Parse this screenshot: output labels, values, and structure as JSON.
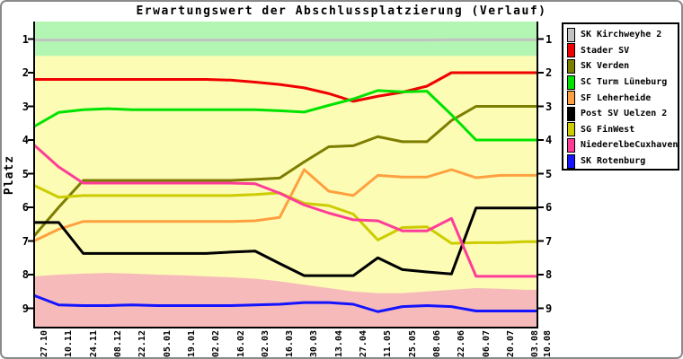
{
  "chart": {
    "frame_color": "#8a8a8a",
    "background_color": "#ffffff",
    "axis_color": "#000000"
  },
  "chart_data": {
    "type": "line",
    "title": "Erwartungswert der Abschlussplatzierung (Verlauf)",
    "xlabel": "",
    "ylabel": "Platz",
    "y_axis_inverted": true,
    "ylim": [
      0.48,
      9.6
    ],
    "y_ticks": [
      "1",
      "2",
      "3",
      "4",
      "5",
      "6",
      "7",
      "8",
      "9"
    ],
    "legend_position": "right",
    "grid": false,
    "x_tick_labels": [
      "27.10",
      "10.11",
      "24.11",
      "08.12",
      "22.12",
      "05.01",
      "19.01",
      "02.02",
      "16.02",
      "02.03",
      "16.03",
      "30.03",
      "13.04",
      "27.04",
      "11.05",
      "25.05",
      "08.06",
      "22.06",
      "06.07",
      "20.07",
      "03.08",
      "10.08"
    ],
    "x_units": [
      0,
      1,
      2,
      3,
      4,
      5,
      6,
      7,
      8,
      9,
      10,
      11,
      12,
      13,
      14,
      15,
      16,
      17,
      18,
      19,
      20,
      20.5
    ],
    "series": [
      {
        "name": "SK Kirchweyhe 2",
        "color": "#c2c2c2",
        "values": [
          1.03,
          1.03,
          1.03,
          1.03,
          1.03,
          1.03,
          1.03,
          1.03,
          1.03,
          1.03,
          1.03,
          1.03,
          1.03,
          1.03,
          1.03,
          1.03,
          1.03,
          1.02,
          1.02,
          1.02,
          1.02,
          1.02
        ]
      },
      {
        "name": "Stader SV",
        "color": "#f00000",
        "values": [
          2.2,
          2.2,
          2.2,
          2.2,
          2.2,
          2.2,
          2.2,
          2.2,
          2.22,
          2.28,
          2.35,
          2.45,
          2.62,
          2.85,
          2.7,
          2.58,
          2.4,
          2.0,
          2.0,
          2.0,
          2.0,
          2.0
        ]
      },
      {
        "name": "SK Verden",
        "color": "#7d7d00",
        "values": [
          6.85,
          6.0,
          5.2,
          5.2,
          5.2,
          5.2,
          5.2,
          5.2,
          5.2,
          5.17,
          5.13,
          4.65,
          4.2,
          4.17,
          3.9,
          4.05,
          4.05,
          3.42,
          3.0,
          3.0,
          3.0,
          3.0
        ]
      },
      {
        "name": "SC Turm Lüneburg",
        "color": "#00e300",
        "values": [
          3.6,
          3.18,
          3.1,
          3.07,
          3.1,
          3.1,
          3.1,
          3.1,
          3.1,
          3.1,
          3.13,
          3.17,
          2.97,
          2.78,
          2.53,
          2.57,
          2.55,
          3.25,
          4.0,
          4.0,
          4.0,
          4.0
        ]
      },
      {
        "name": "SF Leherheide",
        "color": "#ffa040",
        "values": [
          7.0,
          6.65,
          6.42,
          6.42,
          6.42,
          6.42,
          6.42,
          6.42,
          6.42,
          6.4,
          6.3,
          4.88,
          5.52,
          5.65,
          5.05,
          5.1,
          5.1,
          4.88,
          5.12,
          5.05,
          5.05,
          5.05
        ]
      },
      {
        "name": "Post SV Uelzen 2",
        "color": "#000000",
        "values": [
          6.45,
          6.45,
          7.37,
          7.37,
          7.37,
          7.37,
          7.37,
          7.37,
          7.33,
          7.3,
          7.67,
          8.03,
          8.03,
          8.03,
          7.5,
          7.85,
          7.92,
          7.98,
          6.02,
          6.02,
          6.02,
          6.02
        ]
      },
      {
        "name": "SG FinWest",
        "color": "#cccc00",
        "values": [
          5.35,
          5.7,
          5.65,
          5.65,
          5.65,
          5.65,
          5.65,
          5.65,
          5.65,
          5.62,
          5.57,
          5.88,
          5.95,
          6.2,
          6.97,
          6.6,
          6.58,
          7.07,
          7.05,
          7.05,
          7.02,
          7.02
        ]
      },
      {
        "name": "NiederelbeCuxhaven",
        "color": "#ff3d99",
        "values": [
          4.15,
          4.8,
          5.28,
          5.28,
          5.28,
          5.28,
          5.28,
          5.28,
          5.28,
          5.3,
          5.58,
          5.93,
          6.17,
          6.37,
          6.4,
          6.7,
          6.7,
          6.33,
          8.05,
          8.05,
          8.05,
          8.05
        ]
      },
      {
        "name": "SK Rotenburg",
        "color": "#1414ff",
        "values": [
          8.62,
          8.9,
          8.92,
          8.92,
          8.9,
          8.92,
          8.92,
          8.92,
          8.92,
          8.9,
          8.88,
          8.83,
          8.83,
          8.88,
          9.1,
          8.95,
          8.92,
          8.95,
          9.08,
          9.08,
          9.08,
          9.08
        ]
      }
    ],
    "zones": {
      "promotion": {
        "color": "#b3f6b3",
        "from_platz": 0.48,
        "to_platz": 1.5
      },
      "middle": {
        "color": "#fcfcb4"
      },
      "relegation": {
        "color": "#f7baba",
        "boundary_platz": [
          8.05,
          8.0,
          7.97,
          7.95,
          7.97,
          8.0,
          8.02,
          8.05,
          8.08,
          8.12,
          8.2,
          8.3,
          8.4,
          8.5,
          8.55,
          8.55,
          8.5,
          8.45,
          8.4,
          8.42,
          8.45,
          8.45
        ],
        "to_platz": 9.6
      }
    }
  }
}
